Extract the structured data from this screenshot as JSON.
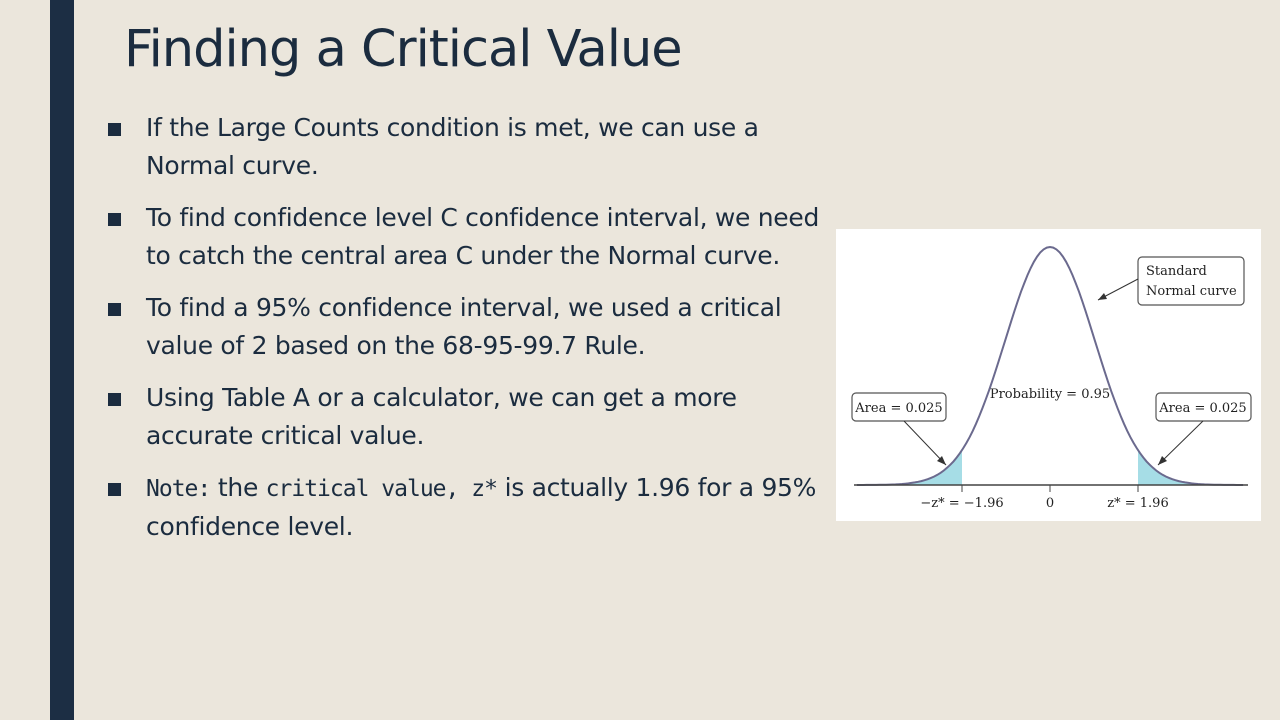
{
  "slide": {
    "title": "Finding a Critical Value",
    "bullets": [
      {
        "text": "If the Large Counts condition is met, we can use a Normal curve."
      },
      {
        "text": "To find confidence level C confidence interval, we need to catch the central area C under the Normal curve."
      },
      {
        "text": "To find a 95% confidence interval, we used a critical value of 2 based on the 68-95-99.7 Rule."
      },
      {
        "text": "Using Table A or a calculator, we can get a more accurate critical value."
      },
      {
        "note_label": "Note:",
        "mid1": " the ",
        "term": "critical value, z*",
        "rest": " is actually 1.96 for a 95% confidence level."
      }
    ]
  },
  "figure": {
    "callout_line1": "Standard",
    "callout_line2": "Normal curve",
    "center_label": "Probability = 0.95",
    "left_area_label": "Area = 0.025",
    "right_area_label": "Area = 0.025",
    "tick_left": "−z* = −1.96",
    "tick_center": "0",
    "tick_right": "z* = 1.96",
    "tail_color": "#a6dde6",
    "curve_color": "#6b6a8e"
  }
}
